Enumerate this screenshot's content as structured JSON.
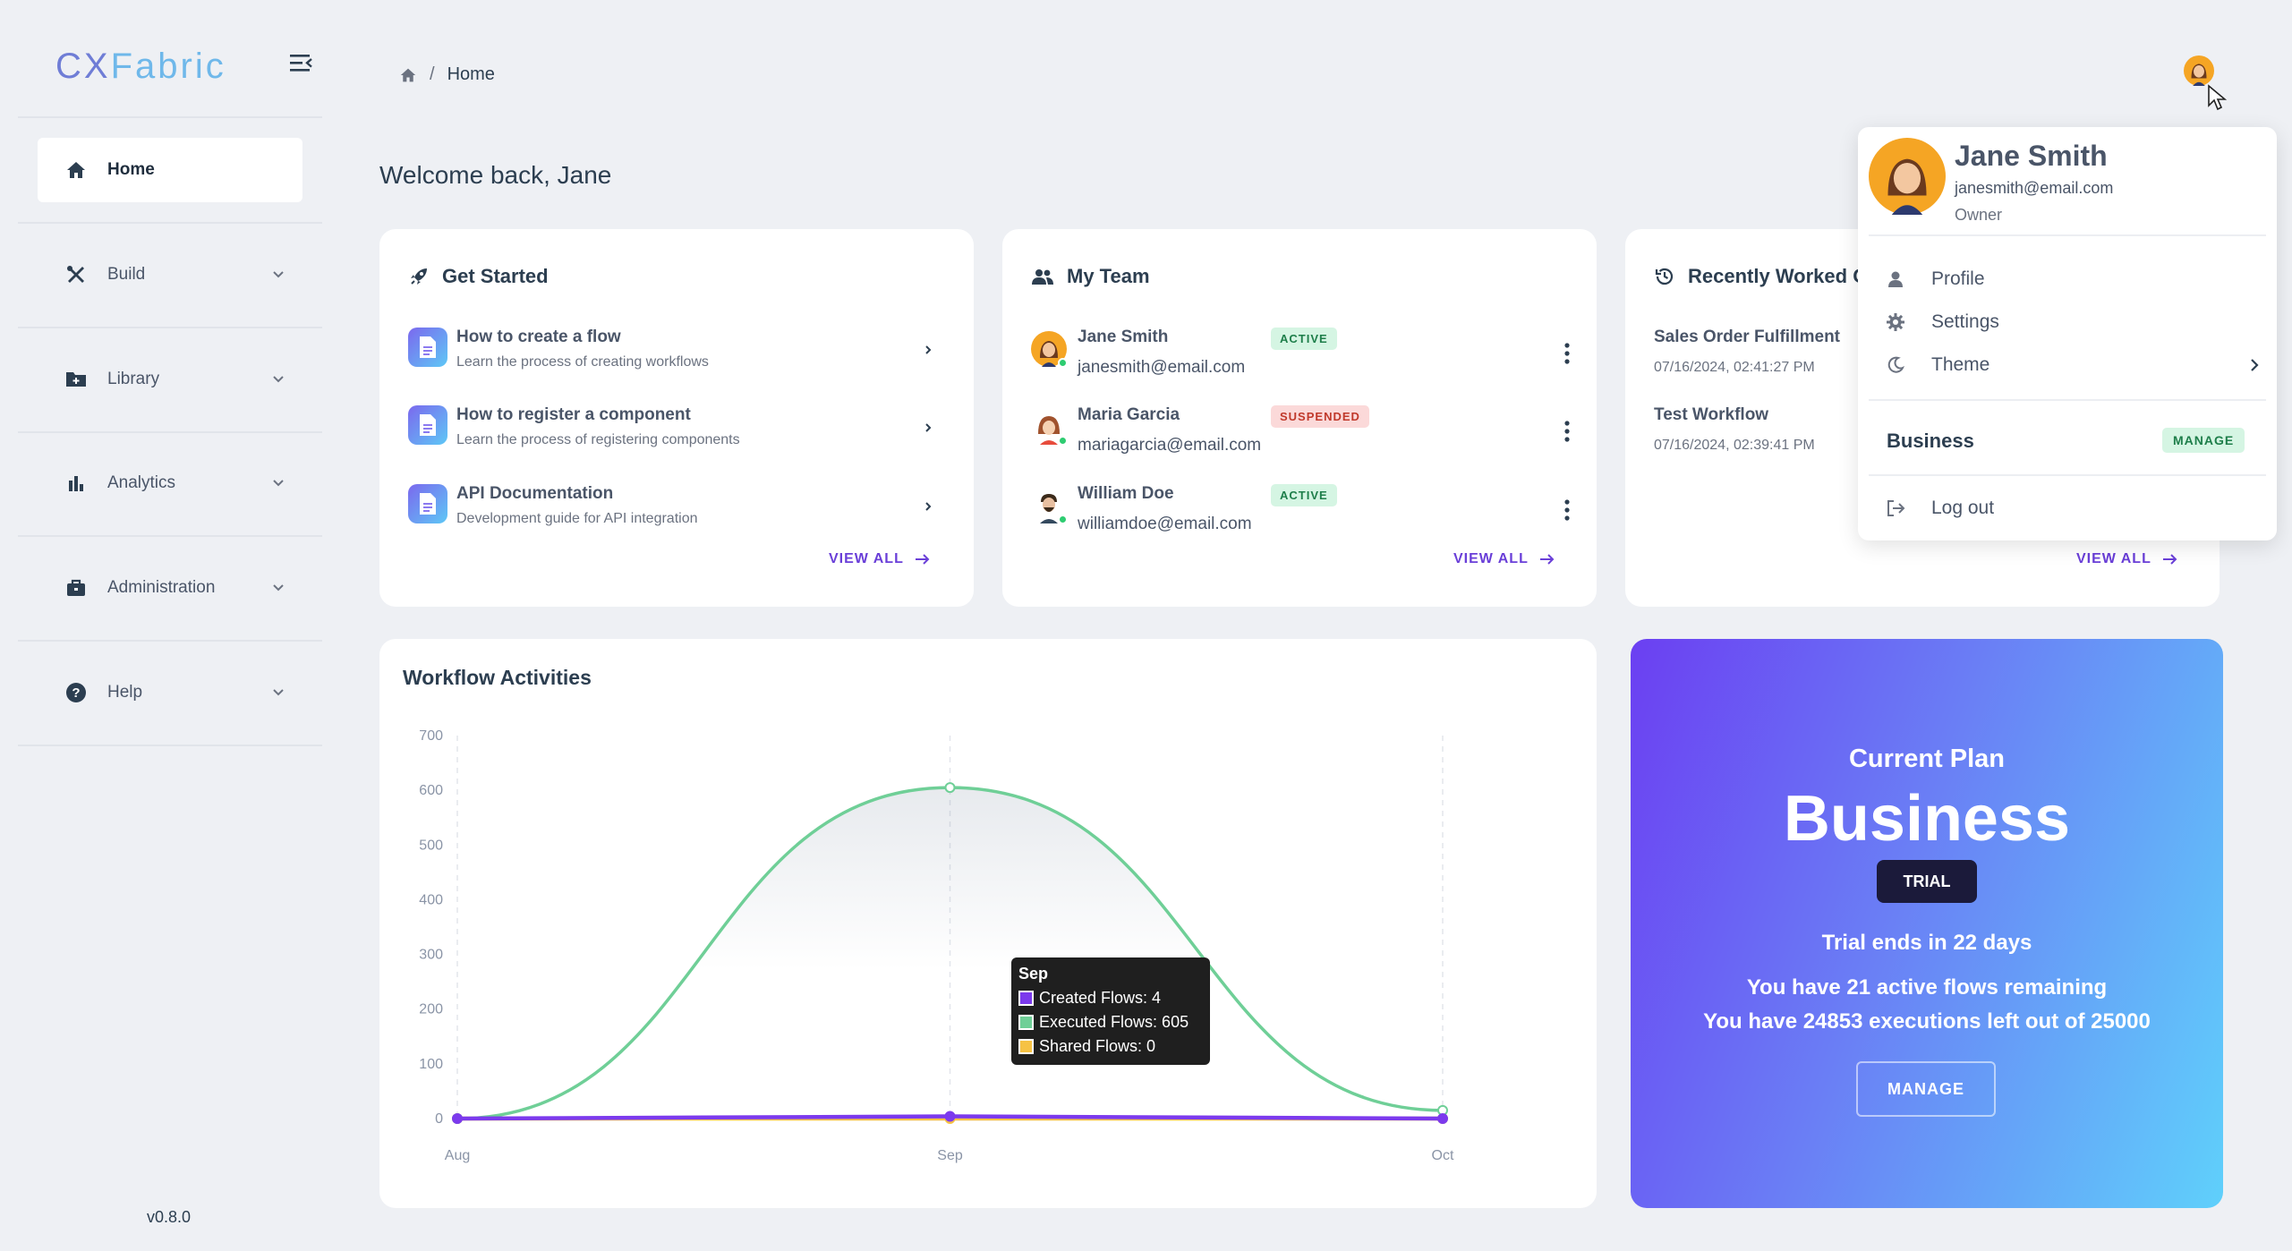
{
  "app": {
    "logo_part1": "CX",
    "logo_part2": "Fabric",
    "version": "v0.8.0"
  },
  "sidebar": {
    "items": [
      {
        "label": "Home",
        "icon": "home-icon",
        "active": true
      },
      {
        "label": "Build",
        "icon": "tools-icon"
      },
      {
        "label": "Library",
        "icon": "folder-icon"
      },
      {
        "label": "Analytics",
        "icon": "bar-chart-icon"
      },
      {
        "label": "Administration",
        "icon": "briefcase-icon"
      },
      {
        "label": "Help",
        "icon": "help-circle-icon"
      }
    ]
  },
  "breadcrumb": {
    "separator": "/",
    "current": "Home"
  },
  "welcome": "Welcome back, Jane",
  "get_started": {
    "title": "Get Started",
    "items": [
      {
        "title": "How to create a flow",
        "subtitle": "Learn the process of creating workflows"
      },
      {
        "title": "How to register a component",
        "subtitle": "Learn the process of registering components"
      },
      {
        "title": "API Documentation",
        "subtitle": "Development guide for API integration"
      }
    ],
    "view_all": "VIEW ALL"
  },
  "team": {
    "title": "My Team",
    "members": [
      {
        "name": "Jane Smith",
        "email": "janesmith@email.com",
        "status": "ACTIVE"
      },
      {
        "name": "Maria Garcia",
        "email": "mariagarcia@email.com",
        "status": "SUSPENDED"
      },
      {
        "name": "William Doe",
        "email": "williamdoe@email.com",
        "status": "ACTIVE"
      }
    ],
    "view_all": "VIEW ALL"
  },
  "recent": {
    "title": "Recently Worked O",
    "items": [
      {
        "name": "Sales Order Fulfillment",
        "time": "07/16/2024, 02:41:27 PM"
      },
      {
        "name": "Test Workflow",
        "time": "07/16/2024, 02:39:41 PM"
      }
    ],
    "view_all": "VIEW ALL"
  },
  "profile_menu": {
    "name": "Jane Smith",
    "email": "janesmith@email.com",
    "role": "Owner",
    "items": [
      "Profile",
      "Settings",
      "Theme"
    ],
    "plan": "Business",
    "manage": "MANAGE",
    "logout": "Log out"
  },
  "plan": {
    "heading": "Current Plan",
    "name": "Business",
    "badge": "TRIAL",
    "trial_text": "Trial ends in 22 days",
    "flows_text": "You have 21 active flows remaining",
    "exec_text": "You have 24853 executions left out of 25000",
    "manage": "MANAGE"
  },
  "chart_card": {
    "title": "Workflow Activities"
  },
  "tooltip": {
    "title": "Sep",
    "rows": [
      "Created Flows: 4",
      "Executed Flows: 605",
      "Shared Flows: 0"
    ]
  },
  "colors": {
    "created": "#7c3aed",
    "executed": "#6fcf97",
    "shared": "#f6c244",
    "accent": "#6a3fd8"
  },
  "chart_data": {
    "type": "line",
    "title": "Workflow Activities",
    "categories": [
      "Aug",
      "Sep",
      "Oct"
    ],
    "ylim": [
      0,
      700
    ],
    "yticks": [
      0,
      100,
      200,
      300,
      400,
      500,
      600,
      700
    ],
    "series": [
      {
        "name": "Created Flows",
        "values": [
          0,
          4,
          0
        ]
      },
      {
        "name": "Executed Flows",
        "values": [
          0,
          605,
          15
        ]
      },
      {
        "name": "Shared Flows",
        "values": [
          0,
          0,
          0
        ]
      }
    ]
  }
}
